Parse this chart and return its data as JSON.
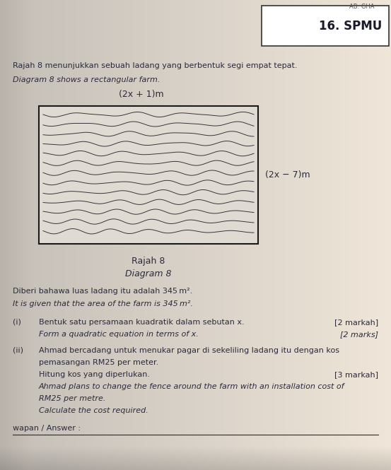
{
  "page_bg": "#d8d4cc",
  "page_inner_bg": "#e8e4dc",
  "header_text": "16. SPMU",
  "header_prefix": "AB. GHA",
  "malay_intro": "Rajah 8 menunjukkan sebuah ladang yang berbentuk segi empat tepat.",
  "english_intro": "Diagram 8 shows a rectangular farm.",
  "top_label": "(2x + 1)m",
  "right_label": "(2x − 7)m",
  "caption_malay": "Rajah 8",
  "caption_english": "Diagram 8",
  "given_malay": "Diberi bahawa luas ladang itu adalah 345 m².",
  "given_english": "It is given that the area of the farm is 345 m².",
  "q1_label": "(i)",
  "q1_malay": "Bentuk satu persamaan kuadratik dalam sebutan x.",
  "q1_marks_malay": "[2 markah]",
  "q1_english": "Form a quadratic equation in terms of x.",
  "q1_marks_english": "[2 marks]",
  "q2_label": "(ii)",
  "q2_malay_1": "Ahmad bercadang untuk menukar pagar di sekeliling ladang itu dengan kos",
  "q2_malay_2": "pemasangan RM25 per meter.",
  "q2_malay_3": "Hitung kos yang diperlukan.",
  "q2_marks_malay": "[3 markah]",
  "q2_english_1": "Ahmad plans to change the fence around the farm with an installation cost of",
  "q2_english_2": "RM25 per metre.",
  "q2_english_3": "Calculate the cost required.",
  "answer_label": "wapan / Answer :",
  "text_color": "#2a2a3a",
  "font_size": 8.0
}
